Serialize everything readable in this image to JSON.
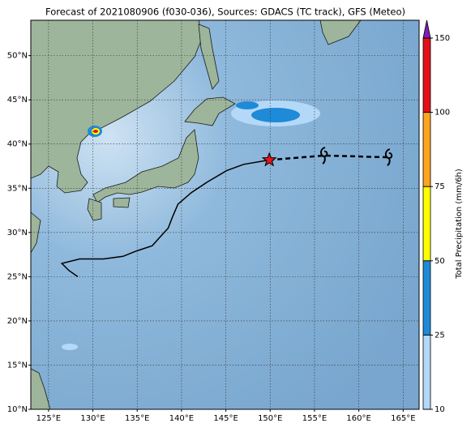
{
  "chart_data": {
    "type": "map",
    "title": "Forecast of 2021080906 (f030-036), Sources: GDACS (TC track), GFS (Meteo)",
    "xlim": [
      123,
      166.8
    ],
    "ylim": [
      10,
      54
    ],
    "xticks": [
      {
        "value": 125,
        "label": "125°E"
      },
      {
        "value": 130,
        "label": "130°E"
      },
      {
        "value": 135,
        "label": "135°E"
      },
      {
        "value": 140,
        "label": "140°E"
      },
      {
        "value": 145,
        "label": "145°E"
      },
      {
        "value": 150,
        "label": "150°E"
      },
      {
        "value": 155,
        "label": "155°E"
      },
      {
        "value": 160,
        "label": "160°E"
      },
      {
        "value": 165,
        "label": "165°E"
      }
    ],
    "yticks": [
      {
        "value": 10,
        "label": "10°N"
      },
      {
        "value": 15,
        "label": "15°N"
      },
      {
        "value": 20,
        "label": "20°N"
      },
      {
        "value": 25,
        "label": "25°N"
      },
      {
        "value": 30,
        "label": "30°N"
      },
      {
        "value": 35,
        "label": "35°N"
      },
      {
        "value": 40,
        "label": "40°N"
      },
      {
        "value": 45,
        "label": "45°N"
      },
      {
        "value": 50,
        "label": "50°N"
      }
    ],
    "grid": true,
    "track_color": "#000000",
    "track_observed": {
      "x": [
        128.3,
        127.3,
        126.5,
        128.5,
        131.2,
        133.4,
        134.9,
        136.7,
        137.5,
        138.5,
        139.0,
        139.6,
        141.1,
        142.9,
        145.1,
        147.0,
        149.9
      ],
      "y": [
        25.0,
        25.7,
        26.5,
        27.0,
        27.0,
        27.3,
        27.9,
        28.5,
        29.4,
        30.5,
        31.8,
        33.2,
        34.5,
        35.7,
        37.0,
        37.7,
        38.2
      ]
    },
    "track_forecast": {
      "x": [
        149.9,
        156.1,
        159.8,
        163.4
      ],
      "y": [
        38.2,
        38.7,
        38.6,
        38.5
      ]
    },
    "storm_symbols": {
      "x": [
        156.1,
        163.4
      ],
      "y": [
        38.7,
        38.5
      ]
    },
    "current_position": {
      "x": 149.9,
      "y": 38.2,
      "color": "#e8141c"
    },
    "colorbar": {
      "label": "Total Precipitation (mm/6h)",
      "ticks": [
        10,
        25,
        50,
        75,
        100,
        150
      ],
      "colors": [
        "#b4d9f8",
        "#1f8ad8",
        "#ffff00",
        "#ffa41f",
        "#e3101a"
      ],
      "extend_color": "#7d1fb8"
    }
  }
}
